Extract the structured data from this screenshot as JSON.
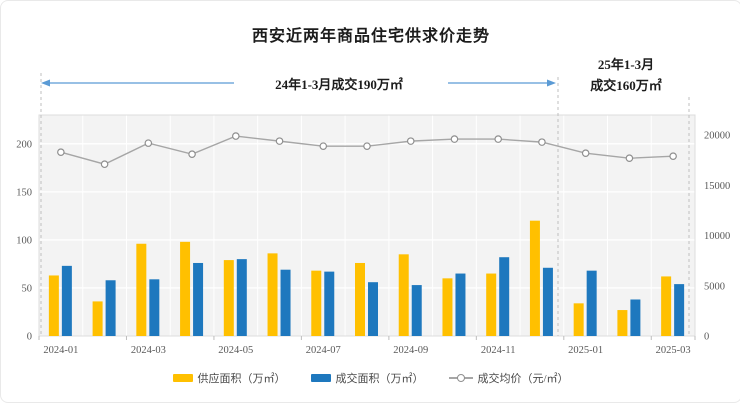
{
  "page": {
    "background": "#ffffff",
    "border_color": "#e9e9e9"
  },
  "title": "西安近两年商品住宅供求价走势",
  "annotations": {
    "period_2024_label": "24年1-3月成交190万㎡",
    "period_2025_line1": "25年1-3月",
    "period_2025_line2": "成交160万㎡",
    "arrow_color": "#5B9BD5",
    "divider_color": "#bfbfbf"
  },
  "legend": {
    "items": [
      {
        "label": "供应面积（万㎡）",
        "marker": "bar-swatch",
        "color": "#FFC000"
      },
      {
        "label": "成交面积（万㎡）",
        "marker": "bar-swatch",
        "color": "#1E78BE"
      },
      {
        "label": "成交均价（元/㎡）",
        "marker": "line-circle-swatch",
        "color": "#A6A6A6"
      }
    ]
  },
  "chart_data": {
    "type": "combo-bar-line",
    "title": "西安近两年商品住宅供求价走势",
    "categories": [
      "2024-01",
      "2024-02",
      "2024-03",
      "2024-04",
      "2024-05",
      "2024-06",
      "2024-07",
      "2024-08",
      "2024-09",
      "2024-10",
      "2024-11",
      "2024-12",
      "2025-01",
      "2025-02",
      "2025-03"
    ],
    "x_axis_visible_ticks": [
      "2024-01",
      "2024-03",
      "2024-05",
      "2024-07",
      "2024-09",
      "2024-11",
      "2025-01",
      "2025-03"
    ],
    "series": [
      {
        "name": "供应面积（万㎡）",
        "type": "bar",
        "axis": "left",
        "color": "#FFC000",
        "values": [
          63,
          36,
          96,
          98,
          79,
          86,
          68,
          76,
          85,
          60,
          65,
          120,
          34,
          27,
          62
        ]
      },
      {
        "name": "成交面积（万㎡）",
        "type": "bar",
        "axis": "left",
        "color": "#1E78BE",
        "values": [
          73,
          58,
          59,
          76,
          80,
          69,
          67,
          56,
          53,
          65,
          82,
          71,
          68,
          38,
          54
        ]
      },
      {
        "name": "成交均价（元/㎡）",
        "type": "line",
        "axis": "right",
        "color": "#A6A6A6",
        "marker": "open-circle",
        "values": [
          18300,
          17100,
          19200,
          18100,
          19900,
          19400,
          18900,
          18900,
          19400,
          19600,
          19600,
          19300,
          18200,
          17700,
          17900
        ]
      }
    ],
    "left_axis": {
      "ticks": [
        0,
        50,
        100,
        150,
        200
      ],
      "max": 230,
      "label_color": "#595959"
    },
    "right_axis": {
      "ticks": [
        0,
        5000,
        10000,
        15000,
        20000
      ],
      "max": 22000,
      "label_color": "#595959"
    },
    "grid": true,
    "plot_background": "#f3f3f3",
    "legend_position": "bottom",
    "annotation_summary": {
      "transactions_2024_jan_mar": "190万㎡",
      "transactions_2025_jan_mar": "160万㎡"
    }
  }
}
